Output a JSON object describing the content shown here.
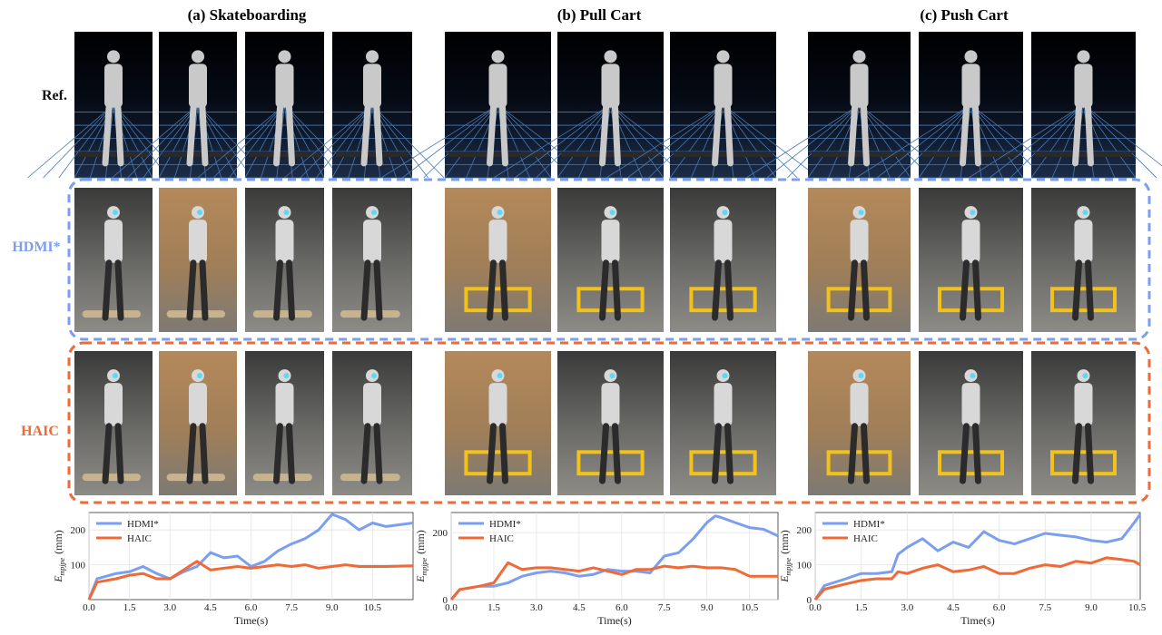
{
  "sections": [
    "(a) Skateboarding",
    "(b) Pull Cart",
    "(c) Push Cart"
  ],
  "rows": [
    {
      "label": "Ref.",
      "color": "#111111"
    },
    {
      "label": "HDMI*",
      "color": "#7b9ff0"
    },
    {
      "label": "HAIC",
      "color": "#ef6a36"
    }
  ],
  "chart_data": [
    {
      "type": "line",
      "ylabel": {
        "symbol": "E",
        "sub": "mpjpe",
        "unit": "(mm)"
      },
      "xlabel": "Time(s)",
      "x": [
        0,
        0.3,
        1,
        1.5,
        2,
        2.5,
        3,
        3.5,
        4,
        4.5,
        5,
        5.5,
        6,
        6.5,
        7,
        7.5,
        8,
        8.5,
        9,
        9.5,
        10,
        10.5,
        11,
        12
      ],
      "series": [
        {
          "name": "HDMI*",
          "color": "#7b9ff0",
          "values": [
            0,
            60,
            75,
            80,
            95,
            75,
            60,
            80,
            95,
            135,
            120,
            125,
            95,
            110,
            140,
            160,
            175,
            200,
            245,
            230,
            200,
            220,
            210,
            220
          ]
        },
        {
          "name": "HAIC",
          "color": "#ef6a36",
          "values": [
            0,
            50,
            60,
            70,
            75,
            60,
            60,
            85,
            110,
            85,
            90,
            95,
            90,
            95,
            100,
            95,
            100,
            90,
            95,
            100,
            95,
            95,
            95,
            97
          ]
        }
      ],
      "xlim": [
        0,
        12
      ],
      "ylim": [
        0,
        250
      ],
      "xticks": [
        {
          "value": 0,
          "label": "0.0"
        },
        1.5,
        {
          "value": 3,
          "label": "3.0"
        },
        4.5,
        {
          "value": 6,
          "label": "6.0"
        },
        7.5,
        {
          "value": 9,
          "label": "9.0"
        },
        10.5
      ],
      "yticks": [
        100,
        200
      ],
      "grid": true,
      "legend": "upper left"
    },
    {
      "type": "line",
      "ylabel": {
        "symbol": "E",
        "sub": "mpjpe",
        "unit": "(mm)"
      },
      "xlabel": "Time(s)",
      "x": [
        0,
        0.3,
        1,
        1.5,
        2,
        2.5,
        3,
        3.5,
        4,
        4.5,
        5,
        5.5,
        6,
        6.5,
        7,
        7.5,
        8,
        8.5,
        9,
        9.3,
        9.5,
        10,
        10.5,
        11,
        11.5
      ],
      "series": [
        {
          "name": "HDMI*",
          "color": "#7b9ff0",
          "values": [
            0,
            30,
            40,
            40,
            50,
            70,
            80,
            85,
            80,
            70,
            75,
            90,
            85,
            85,
            80,
            130,
            140,
            180,
            230,
            250,
            245,
            230,
            215,
            210,
            190
          ]
        },
        {
          "name": "HAIC",
          "color": "#ef6a36",
          "values": [
            0,
            30,
            40,
            50,
            110,
            90,
            95,
            95,
            90,
            85,
            95,
            85,
            75,
            90,
            90,
            100,
            95,
            100,
            95,
            95,
            95,
            90,
            70,
            70,
            70
          ]
        }
      ],
      "xlim": [
        0,
        11.5
      ],
      "ylim": [
        0,
        260
      ],
      "xticks": [
        {
          "value": 0,
          "label": "0.0"
        },
        1.5,
        {
          "value": 3,
          "label": "3.0"
        },
        4.5,
        {
          "value": 6,
          "label": "6.0"
        },
        7.5,
        {
          "value": 9,
          "label": "9.0"
        },
        10.5
      ],
      "yticks": [
        0,
        200
      ],
      "grid": true,
      "legend": "upper left"
    },
    {
      "type": "line",
      "ylabel": {
        "symbol": "E",
        "sub": "mpjpe",
        "unit": "(mm)"
      },
      "xlabel": "Time(s)",
      "x": [
        0,
        0.3,
        1,
        1.5,
        2,
        2.5,
        2.7,
        3,
        3.5,
        4,
        4.5,
        5,
        5.5,
        6,
        6.5,
        7,
        7.5,
        8,
        8.5,
        9,
        9.5,
        10,
        10.4,
        10.6
      ],
      "series": [
        {
          "name": "HDMI*",
          "color": "#7b9ff0",
          "values": [
            0,
            40,
            60,
            75,
            75,
            80,
            130,
            150,
            175,
            140,
            165,
            150,
            195,
            170,
            160,
            175,
            190,
            185,
            180,
            170,
            165,
            175,
            220,
            245
          ]
        },
        {
          "name": "HAIC",
          "color": "#ef6a36",
          "values": [
            0,
            30,
            45,
            55,
            60,
            60,
            80,
            75,
            90,
            100,
            80,
            85,
            95,
            75,
            75,
            90,
            100,
            95,
            110,
            105,
            120,
            115,
            110,
            100
          ]
        }
      ],
      "xlim": [
        0,
        10.6
      ],
      "ylim": [
        0,
        250
      ],
      "xticks": [
        {
          "value": 0,
          "label": "0.0"
        },
        1.5,
        {
          "value": 3,
          "label": "3.0"
        },
        4.5,
        {
          "value": 6,
          "label": "6.0"
        },
        7.5,
        {
          "value": 9,
          "label": "9.0"
        },
        10.5
      ],
      "yticks": [
        0,
        100,
        200
      ],
      "grid": true,
      "legend": "upper left"
    }
  ]
}
